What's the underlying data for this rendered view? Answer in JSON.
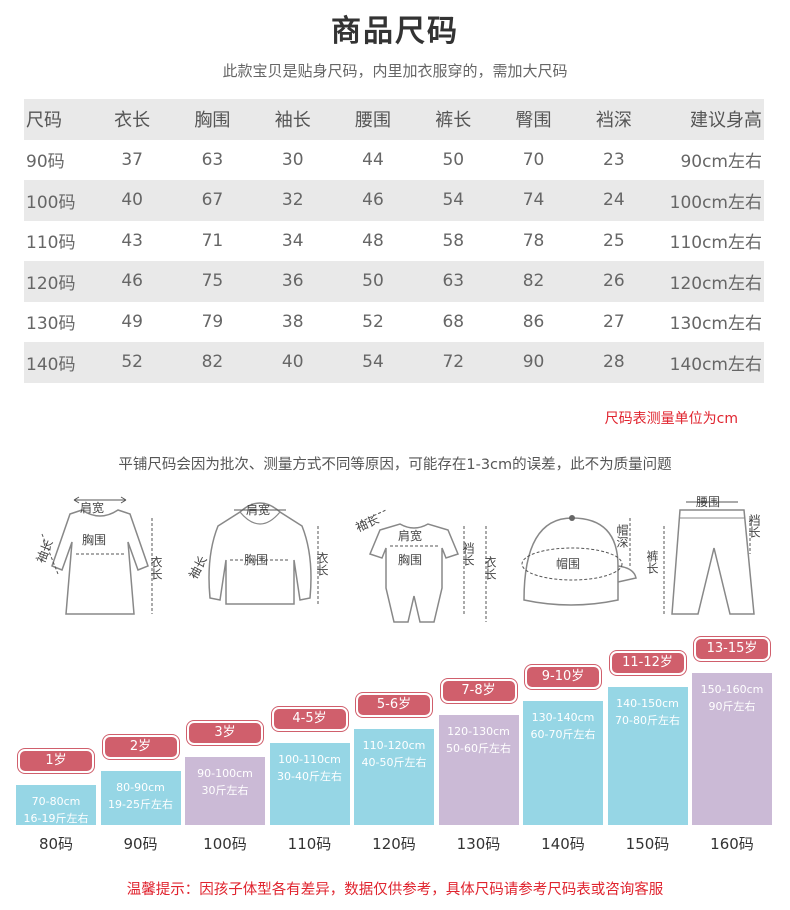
{
  "title": "商品尺码",
  "subtitle": "此款宝贝是贴身尺码，内里加衣服穿的，需加大尺码",
  "table": {
    "headers": [
      "尺码",
      "衣长",
      "胸围",
      "袖长",
      "腰围",
      "裤长",
      "臀围",
      "裆深",
      "建议身高"
    ],
    "rows": [
      [
        "90码",
        "37",
        "63",
        "30",
        "44",
        "50",
        "70",
        "23",
        "90cm左右"
      ],
      [
        "100码",
        "40",
        "67",
        "32",
        "46",
        "54",
        "74",
        "24",
        "100cm左右"
      ],
      [
        "110码",
        "43",
        "71",
        "34",
        "48",
        "58",
        "78",
        "25",
        "110cm左右"
      ],
      [
        "120码",
        "46",
        "75",
        "36",
        "50",
        "63",
        "82",
        "26",
        "120cm左右"
      ],
      [
        "130码",
        "49",
        "79",
        "38",
        "52",
        "68",
        "86",
        "27",
        "130cm左右"
      ],
      [
        "140码",
        "52",
        "82",
        "40",
        "54",
        "72",
        "90",
        "28",
        "140cm左右"
      ]
    ]
  },
  "unit_note": "尺码表测量单位为cm",
  "tolerance_note": "平铺尺码会因为批次、测量方式不同等原因，可能存在1-3cm的误差，此不为质量问题",
  "diagrams": {
    "dress": {
      "shoulder": "肩宽",
      "sleeve": "袖长",
      "chest": "胸围",
      "length": "衣长"
    },
    "hoodie": {
      "shoulder": "肩宽",
      "sleeve": "袖长",
      "chest": "胸围",
      "length": "衣长"
    },
    "romper": {
      "sleeve": "袖长",
      "shoulder": "肩宽",
      "chest": "胸围",
      "crotch": "裆长",
      "length": "衣长"
    },
    "hat": {
      "circumference": "帽围",
      "depth": "帽深"
    },
    "pants": {
      "waist": "腰围",
      "length": "裤长",
      "crotch": "裆长"
    }
  },
  "age_chart": [
    {
      "age": "1岁",
      "height": "70-80cm",
      "weight": "16-19斤左右",
      "size": "80码",
      "color": "blue"
    },
    {
      "age": "2岁",
      "height": "80-90cm",
      "weight": "19-25斤左右",
      "size": "90码",
      "color": "blue"
    },
    {
      "age": "3岁",
      "height": "90-100cm",
      "weight": "30斤左右",
      "size": "100码",
      "color": "purple"
    },
    {
      "age": "4-5岁",
      "height": "100-110cm",
      "weight": "30-40斤左右",
      "size": "110码",
      "color": "blue"
    },
    {
      "age": "5-6岁",
      "height": "110-120cm",
      "weight": "40-50斤左右",
      "size": "120码",
      "color": "blue"
    },
    {
      "age": "7-8岁",
      "height": "120-130cm",
      "weight": "50-60斤左右",
      "size": "130码",
      "color": "purple"
    },
    {
      "age": "9-10岁",
      "height": "130-140cm",
      "weight": "60-70斤左右",
      "size": "140码",
      "color": "blue"
    },
    {
      "age": "11-12岁",
      "height": "140-150cm",
      "weight": "70-80斤左右",
      "size": "150码",
      "color": "blue"
    },
    {
      "age": "13-15岁",
      "height": "150-160cm",
      "weight": "90斤左右",
      "size": "160码",
      "color": "purple"
    }
  ],
  "tip": "温馨提示：因孩子体型各有差异，数据仅供参考，具体尺码请参考尺码表或咨询客服"
}
